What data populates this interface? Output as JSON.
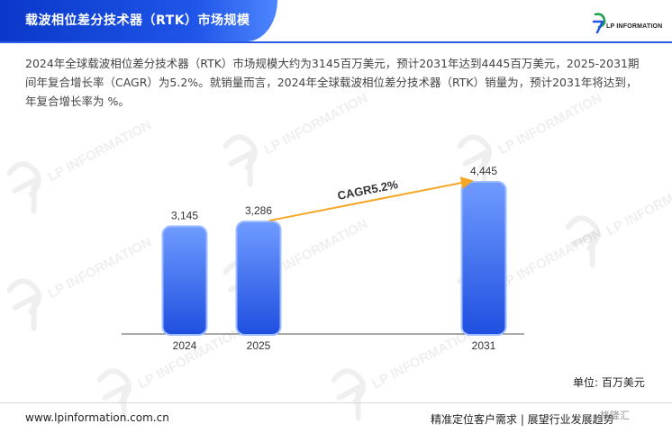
{
  "header": {
    "title": "载波相位差分技术器（RTK）市场规模",
    "logo_text": "LP INFORMATION",
    "colors": {
      "title_bar": "#1f55e8",
      "rule": "#2b5be6"
    }
  },
  "description": "2024年全球载波相位差分技术器（RTK）市场规模大约为3145百万美元，预计2031年达到4445百万美元，2025-2031期间年复合增长率（CAGR）为5.2%。就销量而言，2024年全球载波相位差分技术器（RTK）销量为，预计2031年将达到，年复合增长率为 %。",
  "watermark_text": "LP INFORMATION",
  "chart_data": {
    "type": "bar",
    "categories": [
      "2024",
      "2025",
      "2031"
    ],
    "values": [
      3145,
      3286,
      4445
    ],
    "value_labels": [
      "3,145",
      "3,286",
      "4,445"
    ],
    "annotation": "CAGR5.2%",
    "ylim": [
      0,
      4445
    ],
    "grid": false,
    "colors": {
      "bar_top": "#6f9bff",
      "bar_bottom": "#1f4fe0",
      "arrow": "#f5a623"
    }
  },
  "unit_label": "单位: 百万美元",
  "footer": {
    "website": "www.lpinformation.com.cn",
    "slogan": "精准定位客户需求 | 展望行业发展趋势",
    "badge": "格隆汇"
  }
}
